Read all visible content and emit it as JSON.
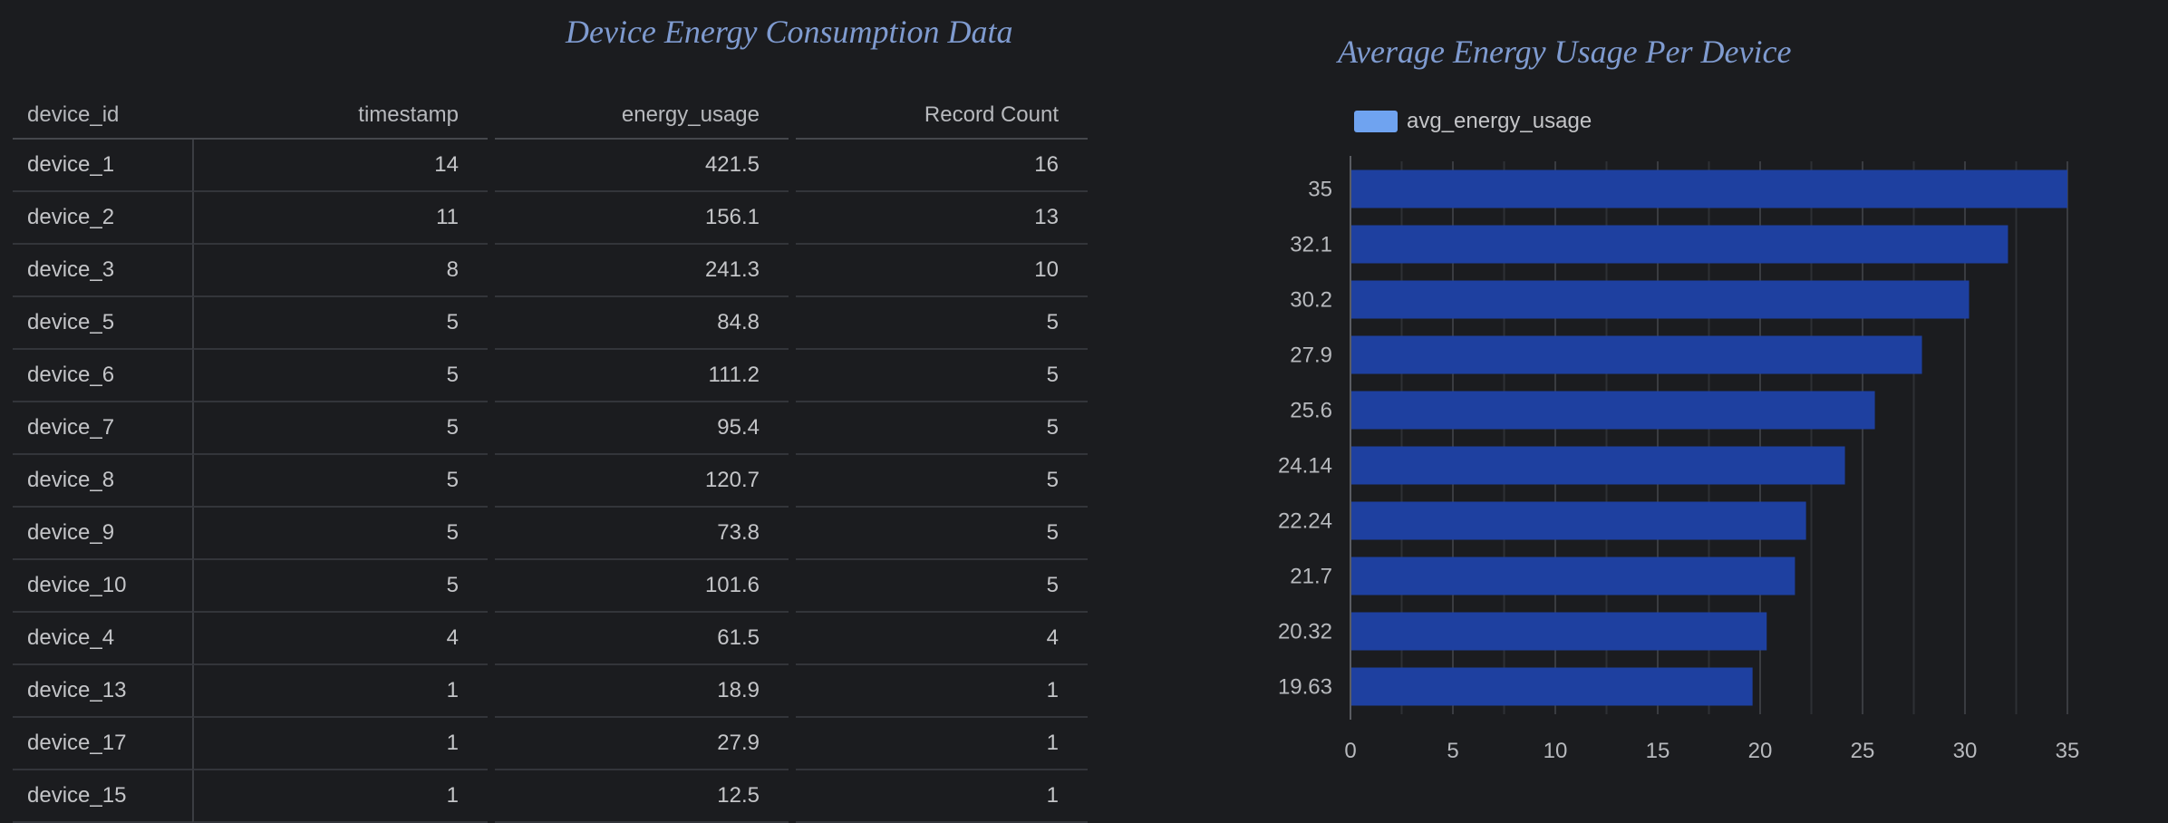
{
  "table": {
    "title": "Device Energy Consumption Data",
    "columns": [
      "device_id",
      "timestamp",
      "energy_usage",
      "Record Count"
    ],
    "rows": [
      [
        "device_1",
        "14",
        "421.5",
        "16"
      ],
      [
        "device_2",
        "11",
        "156.1",
        "13"
      ],
      [
        "device_3",
        "8",
        "241.3",
        "10"
      ],
      [
        "device_5",
        "5",
        "84.8",
        "5"
      ],
      [
        "device_6",
        "5",
        "111.2",
        "5"
      ],
      [
        "device_7",
        "5",
        "95.4",
        "5"
      ],
      [
        "device_8",
        "5",
        "120.7",
        "5"
      ],
      [
        "device_9",
        "5",
        "73.8",
        "5"
      ],
      [
        "device_10",
        "5",
        "101.6",
        "5"
      ],
      [
        "device_4",
        "4",
        "61.5",
        "4"
      ],
      [
        "device_13",
        "1",
        "18.9",
        "1"
      ],
      [
        "device_17",
        "1",
        "27.9",
        "1"
      ],
      [
        "device_15",
        "1",
        "12.5",
        "1"
      ]
    ]
  },
  "chart_data": {
    "type": "bar",
    "orientation": "horizontal",
    "title": "Average Energy Usage Per Device",
    "categories": [
      "35",
      "32.1",
      "30.2",
      "27.9",
      "25.6",
      "24.14",
      "22.24",
      "21.7",
      "20.32",
      "19.63"
    ],
    "series": [
      {
        "name": "avg_energy_usage",
        "values": [
          35,
          32.1,
          30.2,
          27.9,
          25.6,
          24.14,
          22.24,
          21.7,
          20.32,
          19.63
        ],
        "color": "#1e40a0"
      }
    ],
    "legend_color": "#6fa3f0",
    "xlim": [
      0,
      35
    ],
    "xticks": [
      0,
      5,
      10,
      15,
      20,
      25,
      30,
      35
    ],
    "grid": true,
    "legend": "top-left"
  }
}
